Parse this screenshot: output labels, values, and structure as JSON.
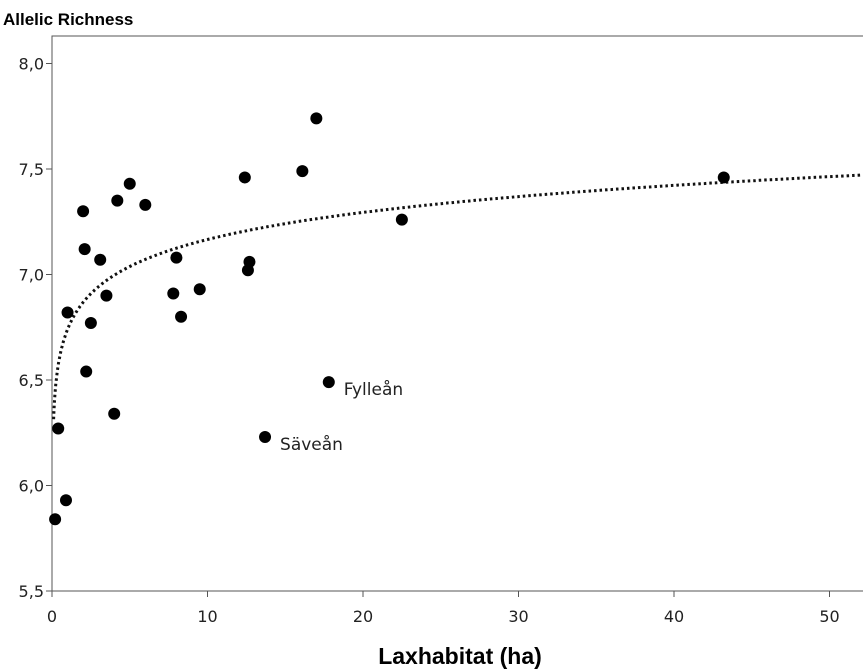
{
  "chart_data": {
    "type": "scatter",
    "title": "",
    "ylabel": "Allelic Richness",
    "xlabel": "Laxhabitat (ha)",
    "xlim": [
      0,
      52
    ],
    "ylim": [
      5.5,
      8.0
    ],
    "xticks": [
      0,
      10,
      20,
      30,
      40,
      50
    ],
    "xtick_labels": [
      "0",
      "10",
      "20",
      "30",
      "40",
      "50"
    ],
    "yticks": [
      5.5,
      6.0,
      6.5,
      7.0,
      7.5,
      8.0
    ],
    "ytick_labels": [
      "5,5",
      "6,0",
      "6,5",
      "7,0",
      "7,5",
      "8,0"
    ],
    "grid": false,
    "marker_color": "#000000",
    "points": [
      {
        "x": 0.2,
        "y": 5.84
      },
      {
        "x": 0.4,
        "y": 6.27
      },
      {
        "x": 0.9,
        "y": 5.93
      },
      {
        "x": 1.0,
        "y": 6.82
      },
      {
        "x": 2.0,
        "y": 7.3
      },
      {
        "x": 2.1,
        "y": 7.12
      },
      {
        "x": 2.2,
        "y": 6.54
      },
      {
        "x": 2.5,
        "y": 6.77
      },
      {
        "x": 3.1,
        "y": 7.07
      },
      {
        "x": 3.5,
        "y": 6.9
      },
      {
        "x": 4.0,
        "y": 6.34
      },
      {
        "x": 4.2,
        "y": 7.35
      },
      {
        "x": 5.0,
        "y": 7.43
      },
      {
        "x": 6.0,
        "y": 7.33
      },
      {
        "x": 7.8,
        "y": 6.91
      },
      {
        "x": 8.0,
        "y": 7.08
      },
      {
        "x": 8.3,
        "y": 6.8
      },
      {
        "x": 9.5,
        "y": 6.93
      },
      {
        "x": 12.4,
        "y": 7.46
      },
      {
        "x": 12.6,
        "y": 7.02
      },
      {
        "x": 12.7,
        "y": 7.06
      },
      {
        "x": 13.7,
        "y": 6.23,
        "label": "Säveån"
      },
      {
        "x": 16.1,
        "y": 7.49
      },
      {
        "x": 17.0,
        "y": 7.74
      },
      {
        "x": 17.8,
        "y": 6.49,
        "label": "Fylleån"
      },
      {
        "x": 22.5,
        "y": 7.26
      },
      {
        "x": 43.2,
        "y": 7.46
      }
    ],
    "fit": {
      "type": "logarithmic",
      "style": "dotted",
      "a": 6.74,
      "b": 0.185
    }
  }
}
